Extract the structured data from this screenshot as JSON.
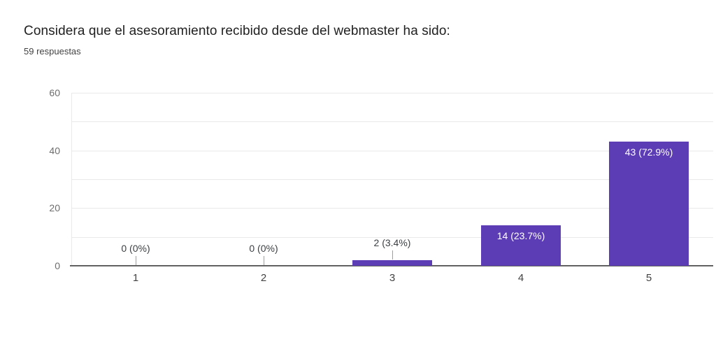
{
  "header": {
    "title": "Considera que el asesoramiento recibido desde del webmaster ha sido:",
    "subtitle": "59 respuestas"
  },
  "chart_data": {
    "type": "bar",
    "title": "Considera que el asesoramiento recibido desde del webmaster ha sido:",
    "subtitle": "59 respuestas",
    "categories": [
      "1",
      "2",
      "3",
      "4",
      "5"
    ],
    "values": [
      0,
      0,
      2,
      14,
      43
    ],
    "percentages": [
      0,
      0,
      3.4,
      23.7,
      72.9
    ],
    "bar_labels": [
      "0 (0%)",
      "0 (0%)",
      "2 (3.4%)",
      "14 (23.7%)",
      "43 (72.9%)"
    ],
    "label_placement": [
      "outside",
      "outside",
      "outside",
      "inside",
      "inside"
    ],
    "total_responses": 59,
    "xlabel": "",
    "ylabel": "",
    "ylim": [
      0,
      60
    ],
    "yticks": [
      0,
      20,
      40,
      60
    ],
    "grid_step": 10,
    "grid": true,
    "legend": "none",
    "colors": {
      "bar": "#5c3db6",
      "label_inside": "#ffffff",
      "label_outside": "#3c4043",
      "gridline": "#e9e9e9",
      "axis_line": "#616161",
      "stem": "#9e9e9e",
      "y_tick_text": "#6d6d6d",
      "x_tick_text": "#424242",
      "title_text": "#212121",
      "subtitle_text": "#424242",
      "background": "#ffffff"
    }
  }
}
